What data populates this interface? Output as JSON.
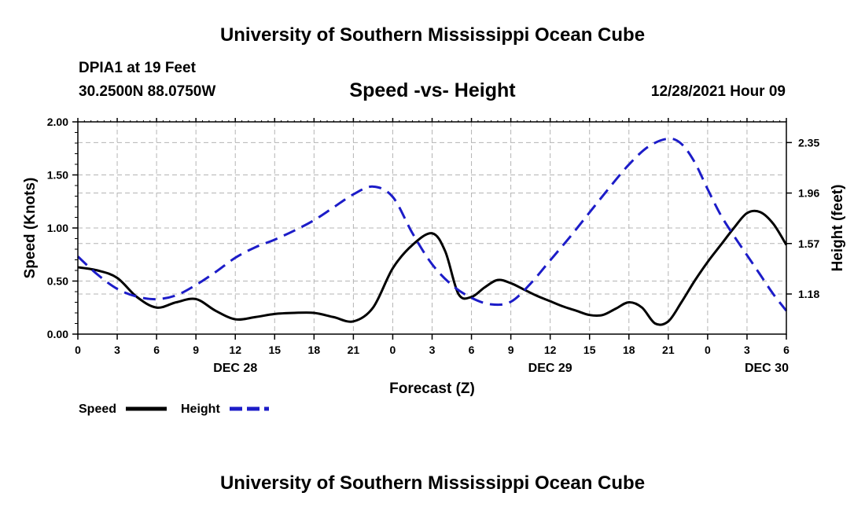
{
  "page": {
    "title": "University of Southern Mississippi Ocean Cube",
    "footer_title": "University of Southern Mississippi Ocean Cube",
    "station": "DPIA1 at 19 Feet",
    "coordinates": "30.2500N  88.0750W",
    "datetime": "12/28/2021 Hour 09"
  },
  "chart_data": {
    "type": "line",
    "title": "Speed -vs- Height",
    "xlabel": "Forecast (Z)",
    "ylabel": "Speed (Knots)",
    "y2label": "Height (feet)",
    "grid": true,
    "x_unit": "forecast hours from 12/28/2021 00Z",
    "xlim": [
      0,
      54
    ],
    "ylim": [
      0,
      2.0
    ],
    "y2lim": [
      0.87,
      2.51
    ],
    "x_ticks": [
      0,
      3,
      6,
      9,
      12,
      15,
      18,
      21,
      24,
      27,
      30,
      33,
      36,
      39,
      42,
      45,
      48,
      51,
      54
    ],
    "x_tick_labels": [
      "0",
      "3",
      "6",
      "9",
      "12",
      "15",
      "18",
      "21",
      "0",
      "3",
      "6",
      "9",
      "12",
      "15",
      "18",
      "21",
      "0",
      "3",
      "6"
    ],
    "date_labels": [
      {
        "x": 12,
        "label": "DEC 28"
      },
      {
        "x": 36,
        "label": "DEC 29"
      },
      {
        "x": 52.5,
        "label": "DEC 30"
      }
    ],
    "y_ticks": [
      0.0,
      0.5,
      1.0,
      1.5,
      2.0
    ],
    "y_tick_labels": [
      "0.00",
      "0.50",
      "1.00",
      "1.50",
      "2.00"
    ],
    "y2_ticks": [
      1.18,
      1.57,
      1.96,
      2.35
    ],
    "y2_tick_labels": [
      "1.18",
      "1.57",
      "1.96",
      "2.35"
    ],
    "legend": {
      "position": "bottom-left",
      "entries": [
        "Speed",
        "Height"
      ]
    },
    "series": [
      {
        "name": "Speed",
        "axis": "left",
        "color": "#000000",
        "dash": "solid",
        "x": [
          0,
          1.5,
          3,
          4.5,
          6,
          7.5,
          9,
          10.5,
          12,
          13.5,
          15,
          16.5,
          18,
          19.5,
          21,
          22.5,
          24,
          25.5,
          27,
          28,
          29,
          30,
          31,
          32,
          33,
          34,
          35,
          36,
          37,
          38,
          39,
          40,
          41,
          42,
          43,
          44,
          45,
          46,
          47,
          48,
          49,
          50,
          51,
          52,
          53,
          54
        ],
        "values": [
          0.63,
          0.6,
          0.53,
          0.35,
          0.25,
          0.3,
          0.33,
          0.22,
          0.14,
          0.16,
          0.19,
          0.2,
          0.2,
          0.16,
          0.12,
          0.25,
          0.62,
          0.84,
          0.95,
          0.78,
          0.38,
          0.35,
          0.44,
          0.51,
          0.48,
          0.42,
          0.36,
          0.31,
          0.26,
          0.22,
          0.18,
          0.18,
          0.24,
          0.3,
          0.25,
          0.1,
          0.12,
          0.3,
          0.5,
          0.68,
          0.84,
          1.0,
          1.14,
          1.15,
          1.04,
          0.84
        ]
      },
      {
        "name": "Height",
        "axis": "right",
        "color": "#1c1cc8",
        "dash": "dashed",
        "x": [
          0,
          1.5,
          3,
          4.5,
          6,
          7.5,
          9,
          10.5,
          12,
          13.5,
          15,
          16.5,
          18,
          19.5,
          21,
          22.5,
          24,
          25.5,
          27,
          28.5,
          30,
          31.5,
          33,
          34.5,
          36,
          37.5,
          39,
          40.5,
          42,
          43.5,
          45,
          46,
          47,
          48,
          49,
          50,
          51,
          52,
          53,
          54
        ],
        "values": [
          1.47,
          1.33,
          1.22,
          1.16,
          1.14,
          1.17,
          1.25,
          1.35,
          1.46,
          1.54,
          1.6,
          1.67,
          1.75,
          1.85,
          1.95,
          2.01,
          1.93,
          1.65,
          1.41,
          1.25,
          1.15,
          1.1,
          1.12,
          1.26,
          1.44,
          1.62,
          1.81,
          2.0,
          2.18,
          2.32,
          2.38,
          2.34,
          2.2,
          1.99,
          1.79,
          1.63,
          1.48,
          1.33,
          1.18,
          1.05
        ]
      }
    ]
  }
}
